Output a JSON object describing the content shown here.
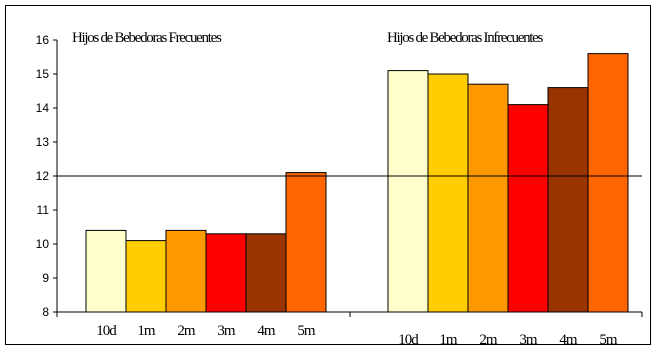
{
  "chart_data": {
    "type": "bar",
    "ylim": [
      8,
      16
    ],
    "yticks": [
      "8",
      "9",
      "10",
      "11",
      "12",
      "13",
      "14",
      "15",
      "16"
    ],
    "reference_line": 12,
    "grid": false,
    "legend": "none",
    "categories": [
      "10d",
      "1m",
      "2m",
      "3m",
      "4m",
      "5m"
    ],
    "category_colors": [
      "#FFFFCC",
      "#FFCC00",
      "#FF9900",
      "#FF0000",
      "#993300",
      "#FF6600"
    ],
    "groups": [
      {
        "title": "Hijos de Bebedoras Frecuentes",
        "values": [
          10.4,
          10.1,
          10.4,
          10.3,
          10.3,
          12.1
        ]
      },
      {
        "title": "Hijos de Bebedoras Infrecuentes",
        "values": [
          15.1,
          15.0,
          14.7,
          14.1,
          14.6,
          15.6
        ]
      }
    ]
  }
}
